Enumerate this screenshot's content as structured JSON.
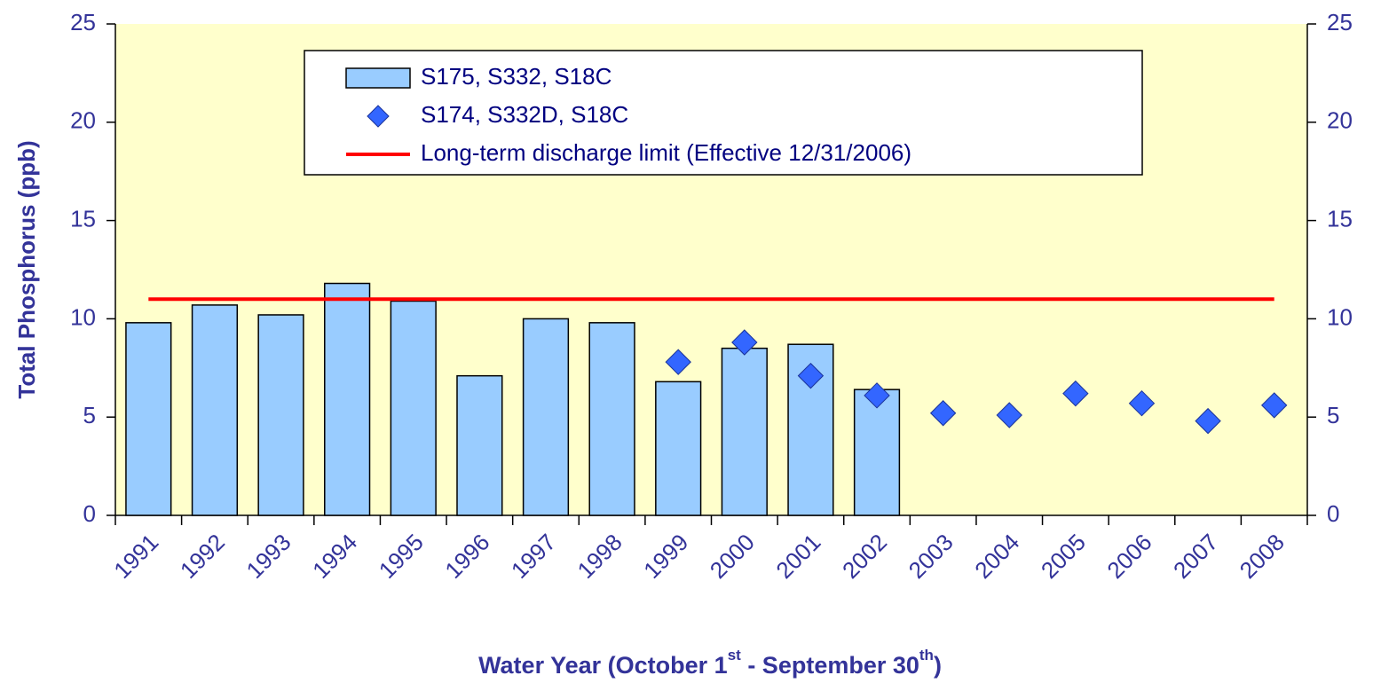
{
  "chart_data": {
    "type": "combo",
    "y_label": "Total Phosphorus (ppb)",
    "x_label": [
      "Water Year (October 1",
      "st",
      " - September 30",
      "th",
      ")"
    ],
    "categories": [
      "1991",
      "1992",
      "1993",
      "1994",
      "1995",
      "1996",
      "1997",
      "1998",
      "1999",
      "2000",
      "2001",
      "2002",
      "2003",
      "2004",
      "2005",
      "2006",
      "2007",
      "2008"
    ],
    "series": [
      {
        "name": "S175, S332, S18C",
        "type": "bar",
        "color": "#99ccff",
        "values": [
          9.8,
          10.7,
          10.2,
          11.8,
          10.9,
          7.1,
          10.0,
          9.8,
          6.8,
          8.5,
          8.7,
          6.4,
          null,
          null,
          null,
          null,
          null,
          null
        ]
      },
      {
        "name": "S174, S332D, S18C",
        "type": "scatter",
        "color": "#3366ff",
        "values": [
          null,
          null,
          null,
          null,
          null,
          null,
          null,
          null,
          7.8,
          8.8,
          7.1,
          6.1,
          5.2,
          5.1,
          6.2,
          5.7,
          4.8,
          5.6
        ]
      },
      {
        "name": "Long-term discharge limit (Effective 12/31/2006)",
        "type": "line",
        "color": "#ff0000",
        "values": [
          11,
          11,
          11,
          11,
          11,
          11,
          11,
          11,
          11,
          11,
          11,
          11,
          11,
          11,
          11,
          11,
          11,
          11
        ]
      }
    ],
    "ylim": [
      0,
      25
    ],
    "yticks": [
      0,
      5,
      10,
      15,
      20,
      25
    ],
    "y2lim": [
      0,
      25
    ],
    "y2ticks": [
      0,
      5,
      10,
      15,
      20,
      25
    ],
    "plot_background": "#ffffcc",
    "legend": "top"
  }
}
